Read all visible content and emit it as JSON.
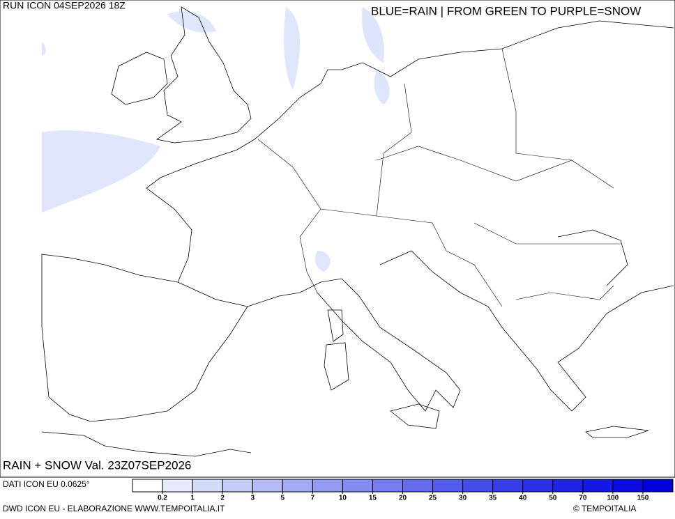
{
  "header": {
    "run": "RUN ICON 04SEP2026 18Z",
    "legend_note": "BLUE=RAIN | FROM GREEN TO PURPLE=SNOW"
  },
  "map": {
    "title": "RAIN + SNOW Val. 23Z07SEP2026"
  },
  "footer": {
    "data_source": "DATI ICON EU 0.0625°",
    "credit": "DWD ICON EU - ELABORAZIONE WWW.TEMPOITALIA.IT",
    "copyright": "© TEMPOITALIA"
  },
  "colorbar": {
    "ticks": [
      0.2,
      1,
      2,
      3,
      5,
      7,
      10,
      15,
      20,
      25,
      30,
      35,
      40,
      50,
      70,
      100,
      150
    ],
    "colors": [
      "#ffffff",
      "#e6ecfc",
      "#d4dcfa",
      "#c4ccf8",
      "#b4bcf6",
      "#a4acf4",
      "#949cf2",
      "#848cf0",
      "#747cee",
      "#646cec",
      "#545cea",
      "#444ce8",
      "#383ee6",
      "#2c30e4",
      "#2024e2",
      "#1418e0",
      "#0a0cde",
      "#0000d8"
    ]
  }
}
